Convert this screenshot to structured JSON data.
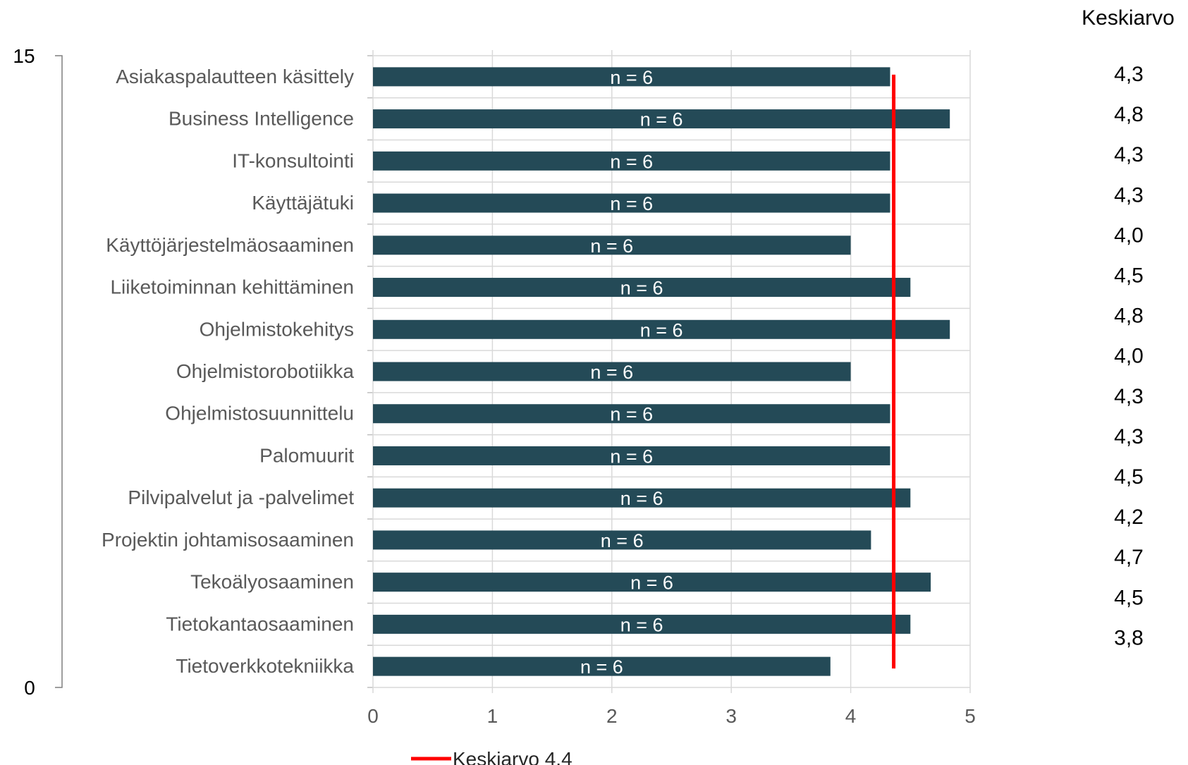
{
  "chart_data": {
    "type": "bar",
    "orientation": "horizontal",
    "categories": [
      "Asiakaspalautteen käsittely",
      "Business Intelligence",
      "IT-konsultointi",
      "Käyttäjätuki",
      "Käyttöjärjestelmäosaaminen",
      "Liiketoiminnan kehittäminen",
      "Ohjelmistokehitys",
      "Ohjelmistorobotiikka",
      "Ohjelmistosuunnittelu",
      "Palomuurit",
      "Pilvipalvelut ja -palvelimet",
      "Projektin johtamisosaaminen",
      "Tekoälyosaaminen",
      "Tietokantaosaaminen",
      "Tietoverkkotekniikka"
    ],
    "values": [
      4.33,
      4.83,
      4.33,
      4.33,
      4.0,
      4.5,
      4.83,
      4.0,
      4.33,
      4.33,
      4.5,
      4.17,
      4.67,
      4.5,
      3.83
    ],
    "bar_labels": [
      "n = 6",
      "n = 6",
      "n = 6",
      "n = 6",
      "n = 6",
      "n = 6",
      "n = 6",
      "n = 6",
      "n = 6",
      "n = 6",
      "n = 6",
      "n = 6",
      "n = 6",
      "n = 6",
      "n = 6"
    ],
    "xlim": [
      0,
      5
    ],
    "xticks": [
      "0",
      "1",
      "2",
      "3",
      "4",
      "5"
    ],
    "grid": true,
    "bar_color": "#244a57",
    "mean_line": {
      "value": 4.36,
      "label": "Keskiarvo 4,4",
      "color": "#ff0000"
    },
    "legend_position": "bottom",
    "secondary_axis": {
      "ticks": [
        "15",
        "0"
      ]
    },
    "side_column": {
      "title": "Keskiarvo",
      "values": [
        "4,3",
        "4,8",
        "4,3",
        "4,3",
        "4,0",
        "4,5",
        "4,8",
        "4,0",
        "4,3",
        "4,3",
        "4,5",
        "4,2",
        "4,7",
        "4,5",
        "3,8"
      ]
    }
  }
}
